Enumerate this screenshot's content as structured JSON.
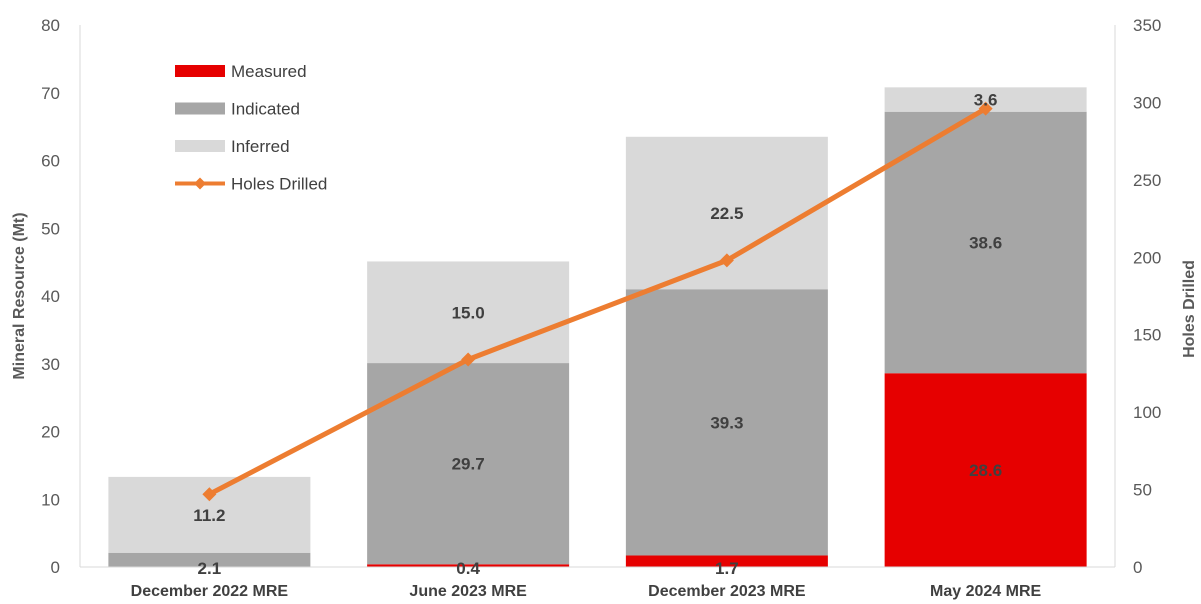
{
  "chart_data": {
    "type": "bar",
    "stacked": true,
    "categories": [
      "December 2022 MRE",
      "June 2023 MRE",
      "December 2023 MRE",
      "May 2024 MRE"
    ],
    "series": [
      {
        "name": "Measured",
        "kind": "bar",
        "axis": "left",
        "color": "#e60000",
        "values": [
          0,
          0.4,
          1.7,
          28.6
        ],
        "labels": [
          "",
          "0.4",
          "1.7",
          "28.6"
        ]
      },
      {
        "name": "Indicated",
        "kind": "bar",
        "axis": "left",
        "color": "#a6a6a6",
        "values": [
          2.1,
          29.7,
          39.3,
          38.6
        ],
        "labels": [
          "2.1",
          "29.7",
          "39.3",
          "38.6"
        ]
      },
      {
        "name": "Inferred",
        "kind": "bar",
        "axis": "left",
        "color": "#d9d9d9",
        "values": [
          11.2,
          15.0,
          22.5,
          3.6
        ],
        "labels": [
          "11.2",
          "15.0",
          "22.5",
          "3.6"
        ]
      },
      {
        "name": "Holes Drilled",
        "kind": "line",
        "axis": "right",
        "color": "#ed7d31",
        "values": [
          47,
          134,
          198,
          296
        ]
      }
    ],
    "ylabel": "Mineral Resource (Mt)",
    "y2label": "Holes Drilled",
    "ylim": [
      0,
      80
    ],
    "y2lim": [
      0,
      350
    ],
    "yticks": [
      "0",
      "10",
      "20",
      "30",
      "40",
      "50",
      "60",
      "70",
      "80"
    ],
    "y2ticks": [
      "0",
      "50",
      "100",
      "150",
      "200",
      "250",
      "300",
      "350"
    ],
    "legend_position": "top-left",
    "grid": false
  }
}
